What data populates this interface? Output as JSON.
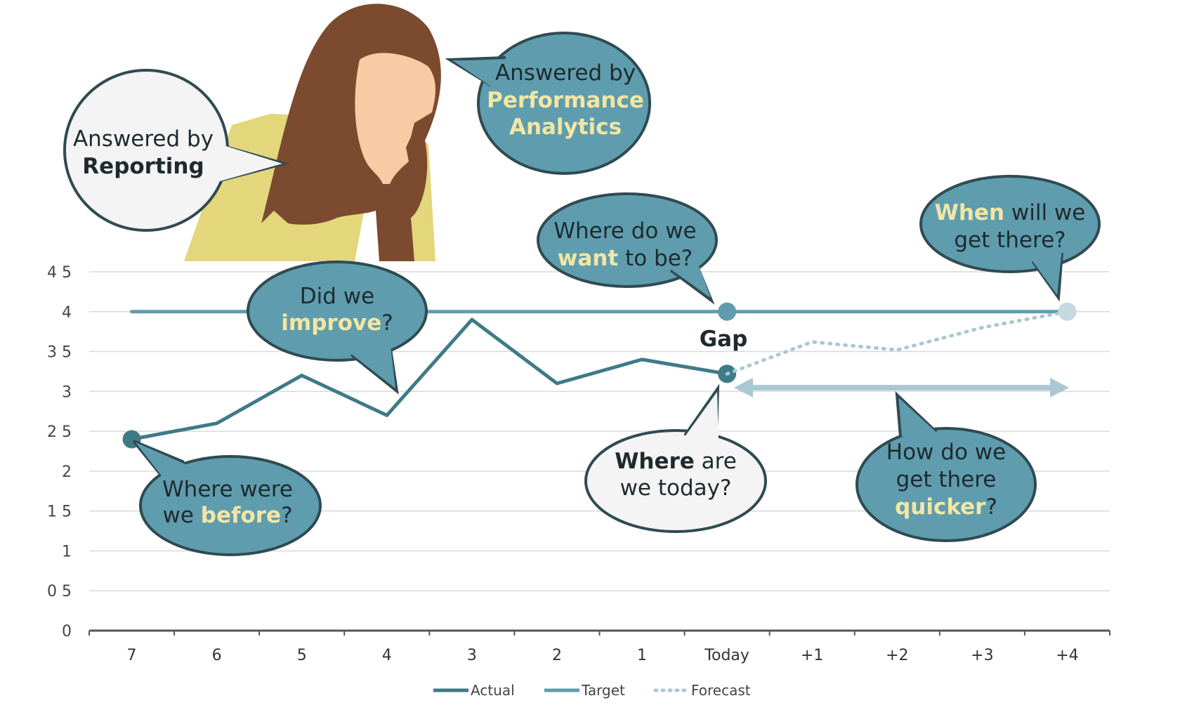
{
  "chart_data": {
    "type": "line",
    "categories": [
      "7",
      "6",
      "5",
      "4",
      "3",
      "2",
      "1",
      "Today",
      "+1",
      "+2",
      "+3",
      "+4"
    ],
    "y_ticks": [
      "0",
      "0 5",
      "1",
      "1 5",
      "2",
      "2 5",
      "3",
      "3 5",
      "4",
      "4 5"
    ],
    "ylim": [
      0,
      4.5
    ],
    "grid": true,
    "legend_position": "bottom",
    "series": [
      {
        "name": "Actual",
        "values": [
          2.4,
          2.6,
          3.2,
          2.7,
          3.9,
          3.1,
          3.4,
          3.22,
          null,
          null,
          null,
          null
        ],
        "color": "#3f7a87"
      },
      {
        "name": "Target",
        "values": [
          4,
          4,
          4,
          4,
          4,
          4,
          4,
          4,
          4,
          4,
          4,
          4
        ],
        "color": "#5f9dae"
      },
      {
        "name": "Forecast",
        "values": [
          null,
          null,
          null,
          null,
          null,
          null,
          null,
          3.22,
          3.62,
          3.52,
          3.8,
          4.0
        ],
        "color": "#a9c8d2"
      }
    ],
    "annotations": {
      "gap": "Gap"
    }
  },
  "bubbles": {
    "reporting": {
      "l1": "Answered by",
      "l2": "Reporting"
    },
    "analytics": {
      "l1": "Answered by",
      "l2": "Performance",
      "l3": "Analytics"
    },
    "want": {
      "l1": "Where do we",
      "l2a": "want",
      "l2b": " to be?"
    },
    "when": {
      "l1a": "When",
      "l1b": " will we",
      "l2": "get there?"
    },
    "improve": {
      "l1": "Did we",
      "l2a": "improve",
      "l2b": "?"
    },
    "before": {
      "l1": "Where were",
      "l2a": "we ",
      "l2b": "before",
      "l2c": "?"
    },
    "today": {
      "l1a": "Where",
      "l1b": " are",
      "l2": "we today?"
    },
    "quicker": {
      "l1": "How do we",
      "l2": "get there",
      "l3a": "quicker",
      "l3b": "?"
    }
  },
  "colors": {
    "bubble_teal": "#5f9dae",
    "bubble_light": "#f4f4f4",
    "bubble_outline": "#2f4b52",
    "highlight": "#f3e6a3",
    "hair": "#7b4a2f",
    "skin": "#f8cba4",
    "jacket": "#e3d67b"
  }
}
